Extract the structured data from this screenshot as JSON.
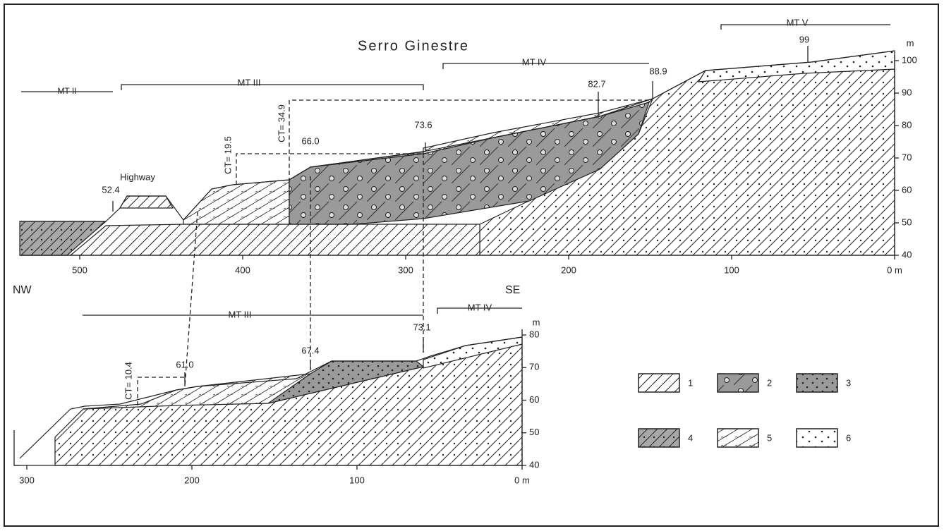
{
  "title": "Serro Ginestre",
  "orientation": {
    "left": "NW",
    "right": "SE"
  },
  "upper_section": {
    "terraces": [
      "MT II",
      "MT III",
      "MT IV",
      "MT V"
    ],
    "landmark": "Highway",
    "elevations": [
      "52.4",
      "66.0",
      "73.6",
      "82.7",
      "88.9",
      "99"
    ],
    "cut_thickness": [
      "CT= 19.5",
      "CT= 34.9"
    ],
    "y_unit": "m",
    "yticks": [
      40,
      50,
      60,
      70,
      80,
      90,
      100
    ],
    "xticks": [
      500,
      400,
      300,
      200,
      100,
      {
        "value": 0,
        "label": "0 m"
      }
    ]
  },
  "lower_section": {
    "terraces": [
      "MT III",
      "MT IV"
    ],
    "elevations": [
      "61.0",
      "67.4",
      "73.1"
    ],
    "cut_thickness": [
      "CT= 10.4"
    ],
    "y_unit": "m",
    "yticks": [
      40,
      50,
      60,
      70,
      80
    ],
    "xticks": [
      300,
      200,
      100,
      {
        "value": 0,
        "label": "0 m"
      }
    ]
  },
  "legend": [
    "1",
    "2",
    "3",
    "4",
    "5",
    "6"
  ]
}
